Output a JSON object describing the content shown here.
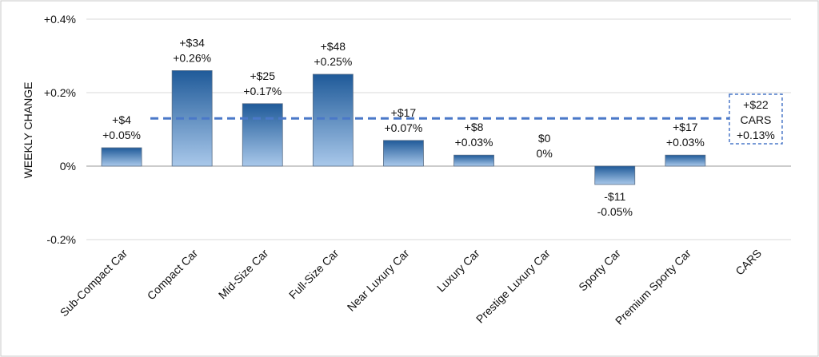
{
  "chart_data": {
    "type": "bar",
    "ylabel": "WEEKLY CHANGE",
    "ylim": [
      -0.2,
      0.4
    ],
    "yticks": [
      {
        "value": 0.4,
        "label": "+0.4%"
      },
      {
        "value": 0.2,
        "label": "+0.2%"
      },
      {
        "value": 0,
        "label": "0%"
      },
      {
        "value": -0.2,
        "label": "-0.2%"
      }
    ],
    "grid": true,
    "categories": [
      "Sub-Compact Car",
      "Compact Car",
      "Mid-Size Car",
      "Full-Size Car",
      "Near Luxury Car",
      "Luxury Car",
      "Prestige Luxury Car",
      "Sporty Car",
      "Premium Sporty Car",
      "CARS"
    ],
    "values": [
      0.05,
      0.26,
      0.17,
      0.25,
      0.07,
      0.03,
      0,
      -0.05,
      0.03,
      null
    ],
    "dollar_labels": [
      "+$4",
      "+$34",
      "+$25",
      "+$48",
      "+$17",
      "+$8",
      "$0",
      "-$11",
      "+$17"
    ],
    "pct_labels": [
      "+0.05%",
      "+0.26%",
      "+0.17%",
      "+0.25%",
      "+0.07%",
      "+0.03%",
      "0%",
      "-0.05%",
      "+0.03%"
    ],
    "average": {
      "value": 0.13,
      "dollar_label": "+$22",
      "name": "CARS",
      "pct_label": "+0.13%"
    },
    "colors": {
      "bar_top": "#1f5a99",
      "bar_bottom": "#a9c8ea",
      "average_line": "#4a78c8",
      "grid": "#d9d9d9"
    }
  }
}
